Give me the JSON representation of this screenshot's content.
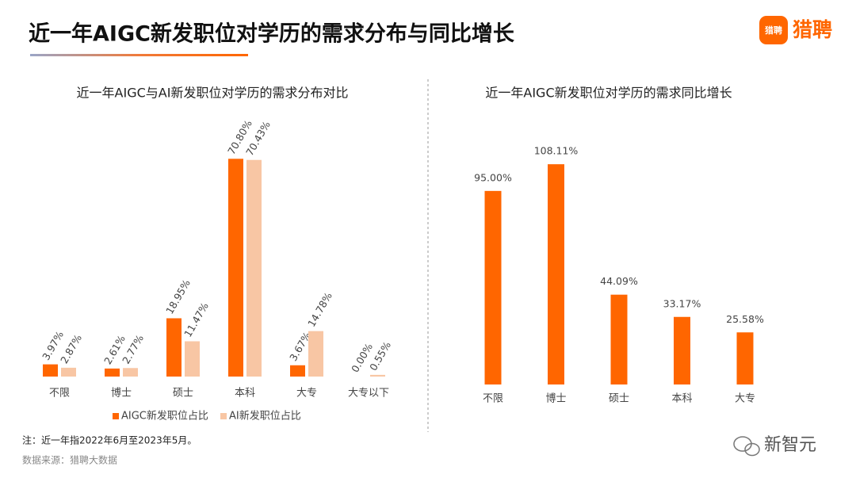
{
  "title": "近一年AIGC新发职位对学历的需求分布与同比增长",
  "logo": "猎聘",
  "note": "注：近一年指2022年6月至2023年5月。",
  "source": "数据来源：猎聘大数据",
  "watermark": "新智元",
  "chart_data": [
    {
      "type": "grouped-bar",
      "title": "近一年AIGC与AI新发职位对学历的需求分布对比",
      "categories": [
        "不限",
        "博士",
        "硕士",
        "本科",
        "大专",
        "大专以下"
      ],
      "series": [
        {
          "name": "AIGC新发职位占比",
          "color": "#ff6600",
          "values": [
            3.97,
            2.61,
            18.95,
            70.8,
            3.67,
            0.0
          ],
          "value_labels": [
            "3.97%",
            "2.61%",
            "18.95%",
            "70.80%",
            "3.67%",
            "0.00%"
          ]
        },
        {
          "name": "AI新发职位占比",
          "color": "#f8c6a4",
          "values": [
            2.87,
            2.77,
            11.47,
            70.43,
            14.78,
            0.55
          ],
          "value_labels": [
            "2.87%",
            "2.77%",
            "11.47%",
            "70.43%",
            "14.78%",
            "0.55%"
          ]
        }
      ],
      "legend": "bottom"
    },
    {
      "type": "bar",
      "title": "近一年AIGC新发职位对学历的需求同比增长",
      "categories": [
        "不限",
        "博士",
        "硕士",
        "本科",
        "大专"
      ],
      "values": [
        95.0,
        108.11,
        44.09,
        33.17,
        25.58
      ],
      "value_labels": [
        "95.00%",
        "108.11%",
        "44.09%",
        "33.17%",
        "25.58%"
      ],
      "color": "#ff6600"
    }
  ]
}
